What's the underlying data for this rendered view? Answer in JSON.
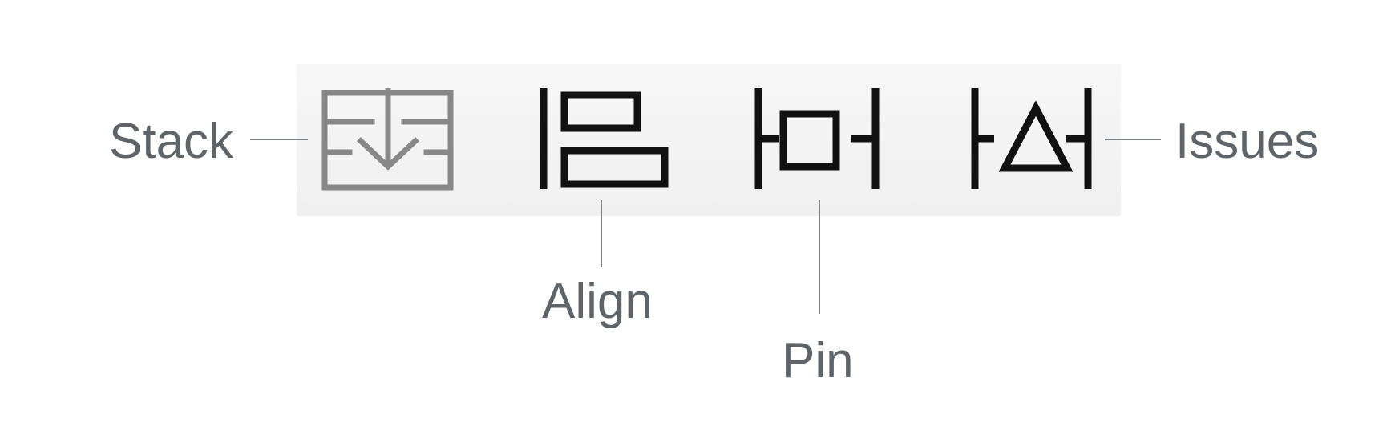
{
  "labels": {
    "stack": "Stack",
    "align": "Align",
    "pin": "Pin",
    "issues": "Issues"
  },
  "icons": {
    "stack": "stack-view-icon",
    "align": "align-icon",
    "pin": "pin-icon",
    "issues": "resolve-auto-layout-issues-icon"
  },
  "colors": {
    "toolbar_background": "#f3f3f3",
    "stack_icon": "#888888",
    "icon": "#111111",
    "label_text": "#5f6469",
    "leader_line": "#7d8084"
  }
}
